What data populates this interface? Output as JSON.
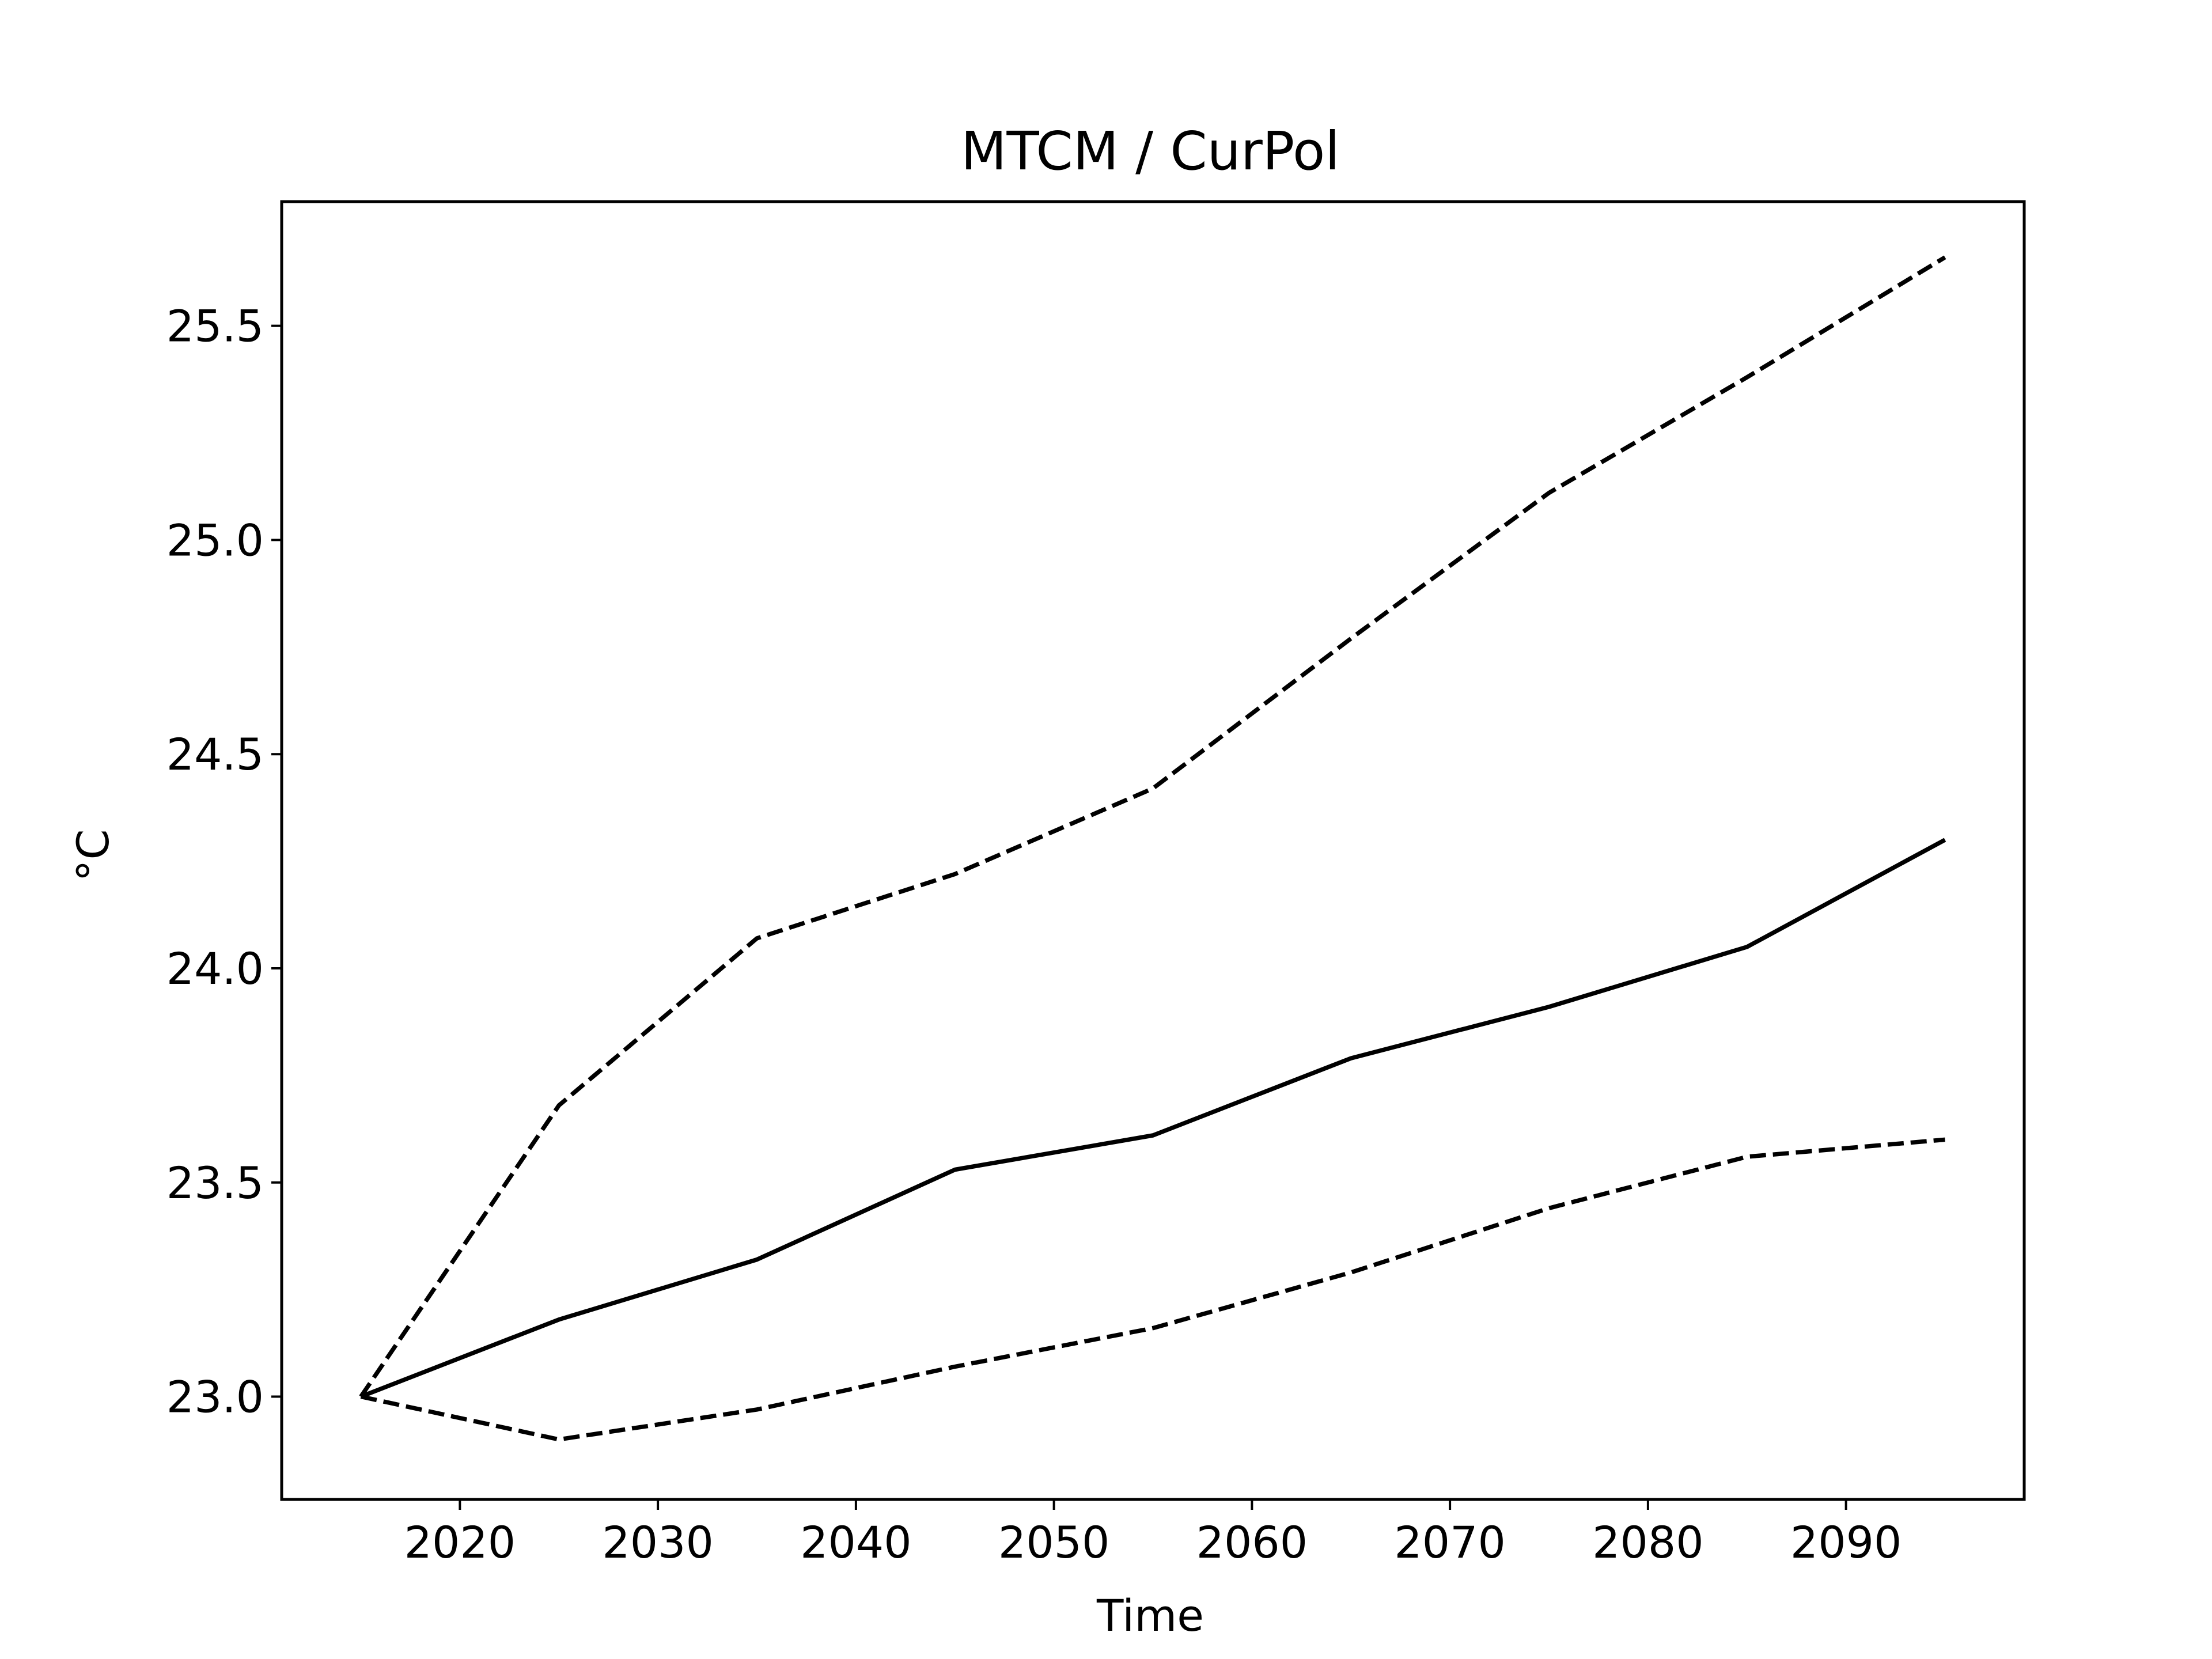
{
  "chart_data": {
    "type": "line",
    "title": "MTCM / CurPol",
    "xlabel": "Time",
    "ylabel": "°C",
    "x": [
      2015,
      2025,
      2035,
      2045,
      2055,
      2065,
      2075,
      2085,
      2095
    ],
    "series": [
      {
        "style": "solid",
        "color": "#000000",
        "values": [
          23.0,
          23.18,
          23.32,
          23.53,
          23.61,
          23.79,
          23.91,
          24.05,
          24.3
        ]
      },
      {
        "style": "dashed",
        "color": "#000000",
        "values": [
          23.0,
          23.68,
          24.07,
          24.22,
          24.42,
          24.77,
          25.11,
          25.38,
          25.66
        ]
      },
      {
        "style": "dashed",
        "color": "#000000",
        "values": [
          23.0,
          22.9,
          22.97,
          23.07,
          23.16,
          23.29,
          23.44,
          23.56,
          23.6
        ]
      }
    ],
    "xlim": [
      2011,
      2099
    ],
    "ylim": [
      22.76,
      25.79
    ],
    "xticks": [
      "2020",
      "2030",
      "2040",
      "2050",
      "2060",
      "2070",
      "2080",
      "2090"
    ],
    "yticks": [
      "23.0",
      "23.5",
      "24.0",
      "24.5",
      "25.0",
      "25.5"
    ],
    "grid": false,
    "legend": "none"
  }
}
